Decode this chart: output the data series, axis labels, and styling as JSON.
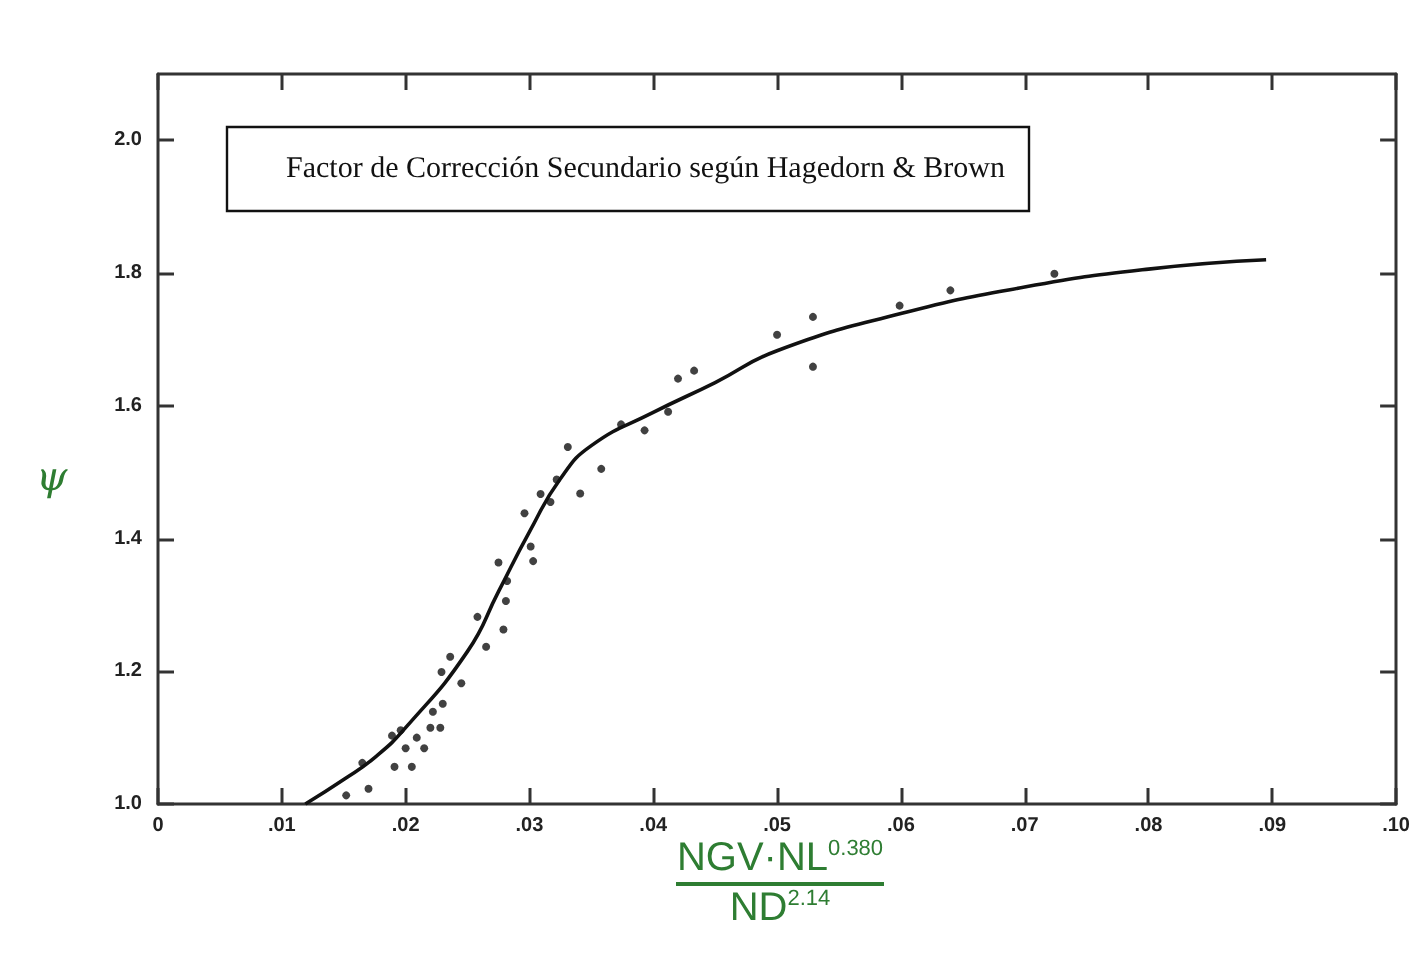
{
  "chart_data": {
    "type": "scatter",
    "title": "Factor de Corrección Secundario según Hagedorn & Brown",
    "xlabel": "NGV·NL$^{0.380}$\nND$^{2.14}$",
    "ylabel": "ψ",
    "xlim": [
      0,
      0.1
    ],
    "ylim": [
      1.0,
      2.1
    ],
    "xticks": [
      {
        "value": 0,
        "label": "0"
      },
      {
        "value": 0.01,
        "label": ".01"
      },
      {
        "value": 0.02,
        "label": ".02"
      },
      {
        "value": 0.03,
        "label": ".03"
      },
      {
        "value": 0.04,
        "label": ".04"
      },
      {
        "value": 0.05,
        "label": ".05"
      },
      {
        "value": 0.06,
        "label": ".06"
      },
      {
        "value": 0.07,
        "label": ".07"
      },
      {
        "value": 0.08,
        "label": ".08"
      },
      {
        "value": 0.09,
        "label": ".09"
      },
      {
        "value": 0.1,
        "label": ".10"
      }
    ],
    "yticks": [
      {
        "value": 1.0,
        "label": "1.0"
      },
      {
        "value": 1.2,
        "label": "1.2"
      },
      {
        "value": 1.4,
        "label": "1.4"
      },
      {
        "value": 1.6,
        "label": "1.6"
      },
      {
        "value": 1.8,
        "label": "1.8"
      },
      {
        "value": 2.0,
        "label": "2.0"
      }
    ],
    "grid": false,
    "series": [
      {
        "color": "#111111",
        "marker": "circle",
        "x": [
          0.0152,
          0.017,
          0.0165,
          0.0189,
          0.0196,
          0.0191,
          0.0205,
          0.02,
          0.0209,
          0.0215,
          0.0222,
          0.022,
          0.0228,
          0.023,
          0.0229,
          0.0236,
          0.0245,
          0.0258,
          0.0265,
          0.0275,
          0.0279,
          0.0281,
          0.0282,
          0.0296,
          0.0301,
          0.0303,
          0.0309,
          0.0317,
          0.0322,
          0.0331,
          0.0341,
          0.0358,
          0.0374,
          0.0393,
          0.0412,
          0.042,
          0.0433,
          0.05,
          0.0529,
          0.0529,
          0.0599,
          0.064,
          0.0724
        ],
        "values": [
          1.013,
          1.023,
          1.062,
          1.103,
          1.111,
          1.056,
          1.056,
          1.084,
          1.1,
          1.084,
          1.139,
          1.115,
          1.115,
          1.151,
          1.199,
          1.222,
          1.182,
          1.282,
          1.237,
          1.364,
          1.263,
          1.306,
          1.336,
          1.438,
          1.388,
          1.366,
          1.467,
          1.455,
          1.489,
          1.538,
          1.468,
          1.505,
          1.572,
          1.563,
          1.591,
          1.641,
          1.653,
          1.707,
          1.734,
          1.659,
          1.751,
          1.774,
          1.799
        ]
      },
      {
        "type": "line",
        "color": "#111111",
        "marker": "none",
        "line_style": "solid",
        "x": [
          0.0119,
          0.015,
          0.0175,
          0.02,
          0.025,
          0.0275,
          0.03,
          0.0325,
          0.035,
          0.04,
          0.045,
          0.05,
          0.06,
          0.07,
          0.08,
          0.0895
        ],
        "values": [
          1.0,
          1.037,
          1.07,
          1.115,
          1.23,
          1.32,
          1.41,
          1.49,
          1.54,
          1.59,
          1.635,
          1.683,
          1.739,
          1.779,
          1.806,
          1.82
        ]
      }
    ]
  }
}
